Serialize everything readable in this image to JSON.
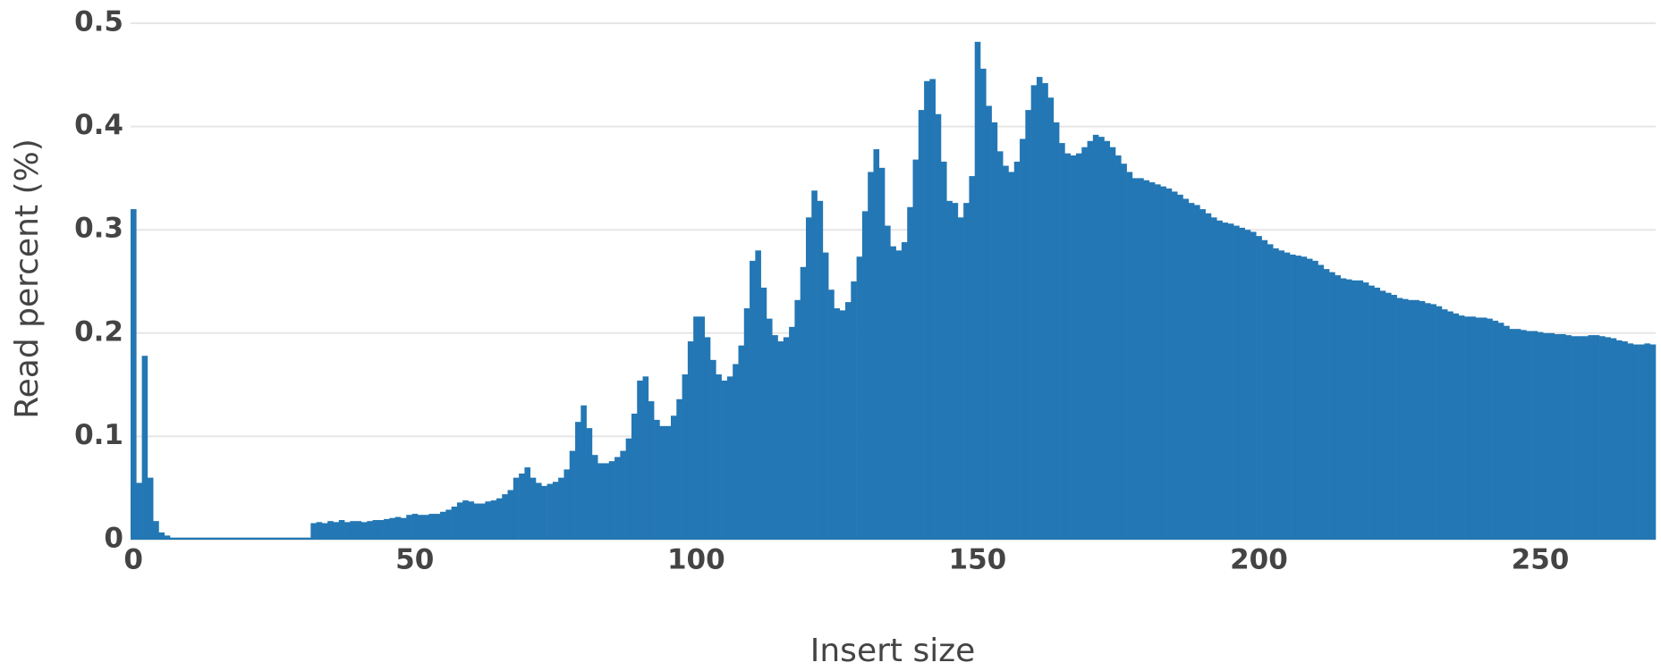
{
  "chart_data": {
    "type": "bar",
    "x_label": "Insert size",
    "y_label": "Read percent (%)",
    "color": "#2377b4",
    "grid": true,
    "xlim": [
      -0.5,
      270.5
    ],
    "xticks": [
      0,
      50,
      100,
      150,
      200,
      250
    ],
    "ylim": [
      0,
      0.5
    ],
    "yticks": [
      0,
      0.1,
      0.2,
      0.3,
      0.4,
      0.5
    ],
    "x": [
      0,
      1,
      2,
      3,
      4,
      5,
      6,
      7,
      8,
      9,
      10,
      11,
      12,
      13,
      14,
      15,
      16,
      17,
      18,
      19,
      20,
      21,
      22,
      23,
      24,
      25,
      26,
      27,
      28,
      29,
      30,
      31,
      32,
      33,
      34,
      35,
      36,
      37,
      38,
      39,
      40,
      41,
      42,
      43,
      44,
      45,
      46,
      47,
      48,
      49,
      50,
      51,
      52,
      53,
      54,
      55,
      56,
      57,
      58,
      59,
      60,
      61,
      62,
      63,
      64,
      65,
      66,
      67,
      68,
      69,
      70,
      71,
      72,
      73,
      74,
      75,
      76,
      77,
      78,
      79,
      80,
      81,
      82,
      83,
      84,
      85,
      86,
      87,
      88,
      89,
      90,
      91,
      92,
      93,
      94,
      95,
      96,
      97,
      98,
      99,
      100,
      101,
      102,
      103,
      104,
      105,
      106,
      107,
      108,
      109,
      110,
      111,
      112,
      113,
      114,
      115,
      116,
      117,
      118,
      119,
      120,
      121,
      122,
      123,
      124,
      125,
      126,
      127,
      128,
      129,
      130,
      131,
      132,
      133,
      134,
      135,
      136,
      137,
      138,
      139,
      140,
      141,
      142,
      143,
      144,
      145,
      146,
      147,
      148,
      149,
      150,
      151,
      152,
      153,
      154,
      155,
      156,
      157,
      158,
      159,
      160,
      161,
      162,
      163,
      164,
      165,
      166,
      167,
      168,
      169,
      170,
      171,
      172,
      173,
      174,
      175,
      176,
      177,
      178,
      179,
      180,
      181,
      182,
      183,
      184,
      185,
      186,
      187,
      188,
      189,
      190,
      191,
      192,
      193,
      194,
      195,
      196,
      197,
      198,
      199,
      200,
      201,
      202,
      203,
      204,
      205,
      206,
      207,
      208,
      209,
      210,
      211,
      212,
      213,
      214,
      215,
      216,
      217,
      218,
      219,
      220,
      221,
      222,
      223,
      224,
      225,
      226,
      227,
      228,
      229,
      230,
      231,
      232,
      233,
      234,
      235,
      236,
      237,
      238,
      239,
      240,
      241,
      242,
      243,
      244,
      245,
      246,
      247,
      248,
      249,
      250,
      251,
      252,
      253,
      254,
      255,
      256,
      257,
      258,
      259,
      260,
      261,
      262,
      263,
      264,
      265,
      266,
      267,
      268,
      269,
      270
    ],
    "values": [
      0.32,
      0.055,
      0.178,
      0.06,
      0.018,
      0.007,
      0.004,
      0.002,
      0.002,
      0.002,
      0.002,
      0.002,
      0.002,
      0.002,
      0.002,
      0.002,
      0.002,
      0.002,
      0.002,
      0.002,
      0.002,
      0.002,
      0.002,
      0.002,
      0.002,
      0.002,
      0.002,
      0.002,
      0.002,
      0.002,
      0.002,
      0.002,
      0.016,
      0.017,
      0.016,
      0.018,
      0.017,
      0.019,
      0.017,
      0.018,
      0.018,
      0.017,
      0.018,
      0.019,
      0.019,
      0.02,
      0.021,
      0.022,
      0.021,
      0.024,
      0.025,
      0.024,
      0.024,
      0.025,
      0.025,
      0.027,
      0.029,
      0.032,
      0.036,
      0.038,
      0.037,
      0.035,
      0.035,
      0.037,
      0.038,
      0.04,
      0.044,
      0.048,
      0.06,
      0.064,
      0.07,
      0.06,
      0.055,
      0.052,
      0.054,
      0.056,
      0.06,
      0.068,
      0.086,
      0.114,
      0.13,
      0.108,
      0.082,
      0.074,
      0.074,
      0.076,
      0.08,
      0.086,
      0.098,
      0.122,
      0.154,
      0.158,
      0.134,
      0.116,
      0.11,
      0.11,
      0.12,
      0.136,
      0.16,
      0.192,
      0.216,
      0.216,
      0.196,
      0.174,
      0.16,
      0.154,
      0.158,
      0.17,
      0.188,
      0.224,
      0.27,
      0.28,
      0.244,
      0.214,
      0.198,
      0.192,
      0.196,
      0.206,
      0.232,
      0.264,
      0.312,
      0.338,
      0.328,
      0.278,
      0.242,
      0.224,
      0.222,
      0.23,
      0.25,
      0.274,
      0.318,
      0.356,
      0.378,
      0.36,
      0.304,
      0.284,
      0.28,
      0.288,
      0.322,
      0.368,
      0.416,
      0.444,
      0.446,
      0.412,
      0.366,
      0.328,
      0.326,
      0.312,
      0.326,
      0.352,
      0.482,
      0.456,
      0.42,
      0.404,
      0.376,
      0.362,
      0.356,
      0.366,
      0.388,
      0.416,
      0.44,
      0.448,
      0.442,
      0.428,
      0.404,
      0.384,
      0.374,
      0.372,
      0.374,
      0.38,
      0.386,
      0.392,
      0.39,
      0.386,
      0.38,
      0.372,
      0.364,
      0.356,
      0.35,
      0.35,
      0.348,
      0.346,
      0.344,
      0.342,
      0.34,
      0.337,
      0.334,
      0.33,
      0.326,
      0.324,
      0.32,
      0.316,
      0.312,
      0.309,
      0.307,
      0.306,
      0.304,
      0.302,
      0.3,
      0.298,
      0.294,
      0.29,
      0.286,
      0.282,
      0.28,
      0.278,
      0.276,
      0.275,
      0.274,
      0.272,
      0.27,
      0.266,
      0.262,
      0.259,
      0.256,
      0.253,
      0.252,
      0.251,
      0.251,
      0.249,
      0.246,
      0.244,
      0.241,
      0.239,
      0.237,
      0.234,
      0.233,
      0.232,
      0.232,
      0.231,
      0.229,
      0.228,
      0.226,
      0.223,
      0.221,
      0.219,
      0.217,
      0.216,
      0.216,
      0.215,
      0.215,
      0.214,
      0.212,
      0.21,
      0.207,
      0.204,
      0.204,
      0.203,
      0.202,
      0.202,
      0.201,
      0.2,
      0.2,
      0.199,
      0.199,
      0.198,
      0.197,
      0.197,
      0.197,
      0.198,
      0.198,
      0.197,
      0.196,
      0.195,
      0.193,
      0.192,
      0.19,
      0.189,
      0.189,
      0.19,
      0.189
    ]
  }
}
